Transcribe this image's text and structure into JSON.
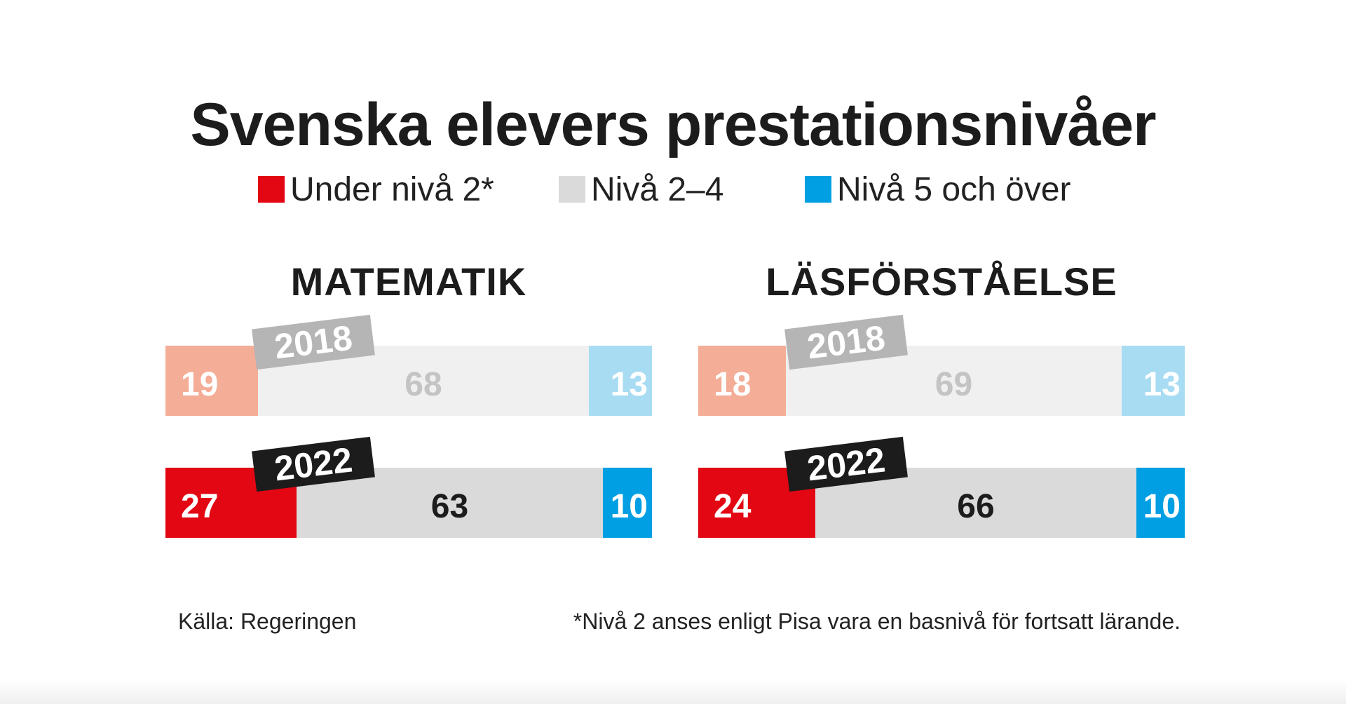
{
  "title": "Svenska elevers prestationsnivåer",
  "legend": [
    {
      "label": "Under nivå 2*",
      "color": "#e30613"
    },
    {
      "label": "Nivå 2–4",
      "color": "#dadada"
    },
    {
      "label": "Nivå 5 och över",
      "color": "#009fe3"
    }
  ],
  "chart_data": [
    {
      "type": "bar",
      "stacked": true,
      "orientation": "horizontal",
      "title": "MATEMATIK",
      "categories": [
        "2018",
        "2022"
      ],
      "series": [
        {
          "name": "Under nivå 2*",
          "values": [
            19,
            27
          ],
          "colors": [
            "#f4ad96",
            "#e30613"
          ],
          "text_colors": [
            "#ffffff",
            "#ffffff"
          ]
        },
        {
          "name": "Nivå 2–4",
          "values": [
            68,
            63
          ],
          "colors": [
            "#f0f0f0",
            "#dadada"
          ],
          "text_colors": [
            "#c4c4c4",
            "#1c1c1c"
          ]
        },
        {
          "name": "Nivå 5 och över",
          "values": [
            13,
            10
          ],
          "colors": [
            "#a8dcf3",
            "#009fe3"
          ],
          "text_colors": [
            "#ffffff",
            "#ffffff"
          ]
        }
      ],
      "year_tag_colors": [
        {
          "bg": "#b5b5b5",
          "fg": "#ffffff"
        },
        {
          "bg": "#1c1c1c",
          "fg": "#ffffff"
        }
      ]
    },
    {
      "type": "bar",
      "stacked": true,
      "orientation": "horizontal",
      "title": "LÄSFÖRSTÅELSE",
      "categories": [
        "2018",
        "2022"
      ],
      "series": [
        {
          "name": "Under nivå 2*",
          "values": [
            18,
            24
          ],
          "colors": [
            "#f4ad96",
            "#e30613"
          ],
          "text_colors": [
            "#ffffff",
            "#ffffff"
          ]
        },
        {
          "name": "Nivå 2–4",
          "values": [
            69,
            66
          ],
          "colors": [
            "#f0f0f0",
            "#dadada"
          ],
          "text_colors": [
            "#c4c4c4",
            "#1c1c1c"
          ]
        },
        {
          "name": "Nivå 5 och över",
          "values": [
            13,
            10
          ],
          "colors": [
            "#a8dcf3",
            "#009fe3"
          ],
          "text_colors": [
            "#ffffff",
            "#ffffff"
          ]
        }
      ],
      "year_tag_colors": [
        {
          "bg": "#b5b5b5",
          "fg": "#ffffff"
        },
        {
          "bg": "#1c1c1c",
          "fg": "#ffffff"
        }
      ]
    }
  ],
  "footer": {
    "source": "Källa: Regeringen",
    "note": "*Nivå 2 anses enligt Pisa vara en basnivå för fortsatt lärande."
  }
}
